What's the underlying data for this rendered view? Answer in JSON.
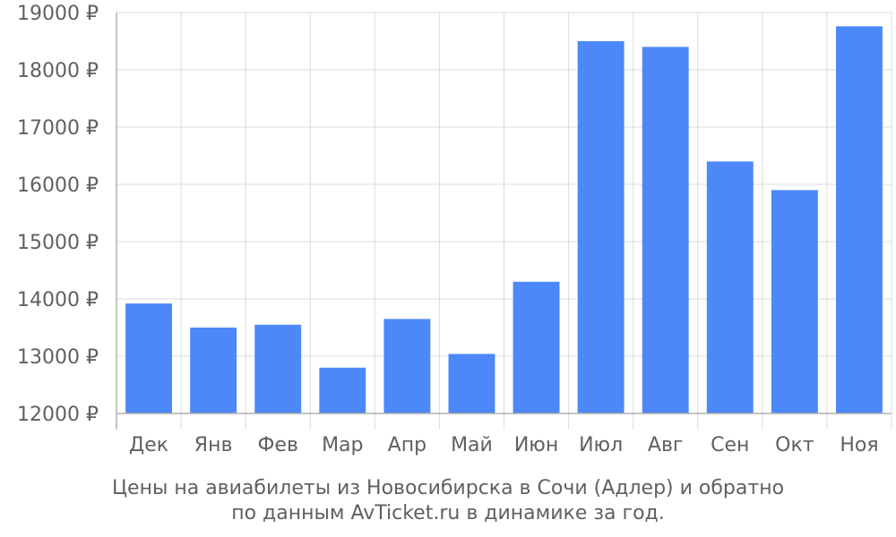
{
  "chart_data": {
    "type": "bar",
    "categories": [
      "Дек",
      "Янв",
      "Фев",
      "Мар",
      "Апр",
      "Май",
      "Июн",
      "Июл",
      "Авг",
      "Сен",
      "Окт",
      "Ноя"
    ],
    "values": [
      13920,
      13500,
      13550,
      12800,
      13650,
      13040,
      14300,
      18500,
      18400,
      16400,
      15900,
      18760
    ],
    "ylim": [
      12000,
      19000
    ],
    "yticks": [
      12000,
      13000,
      14000,
      15000,
      16000,
      17000,
      18000,
      19000
    ],
    "ytick_labels": [
      "12000 ₽",
      "13000 ₽",
      "14000 ₽",
      "15000 ₽",
      "16000 ₽",
      "17000 ₽",
      "18000 ₽",
      "19000 ₽"
    ],
    "grid": true,
    "colors": {
      "bar": "#4d88f9",
      "grid": "#dcdcdc",
      "axis": "#b0b0b0",
      "text": "#606060"
    }
  },
  "caption": {
    "line1": "Цены на авиабилеты из Новосибирска в Сочи (Адлер) и обратно",
    "line2": "по данным AvTicket.ru в динамике за год."
  }
}
